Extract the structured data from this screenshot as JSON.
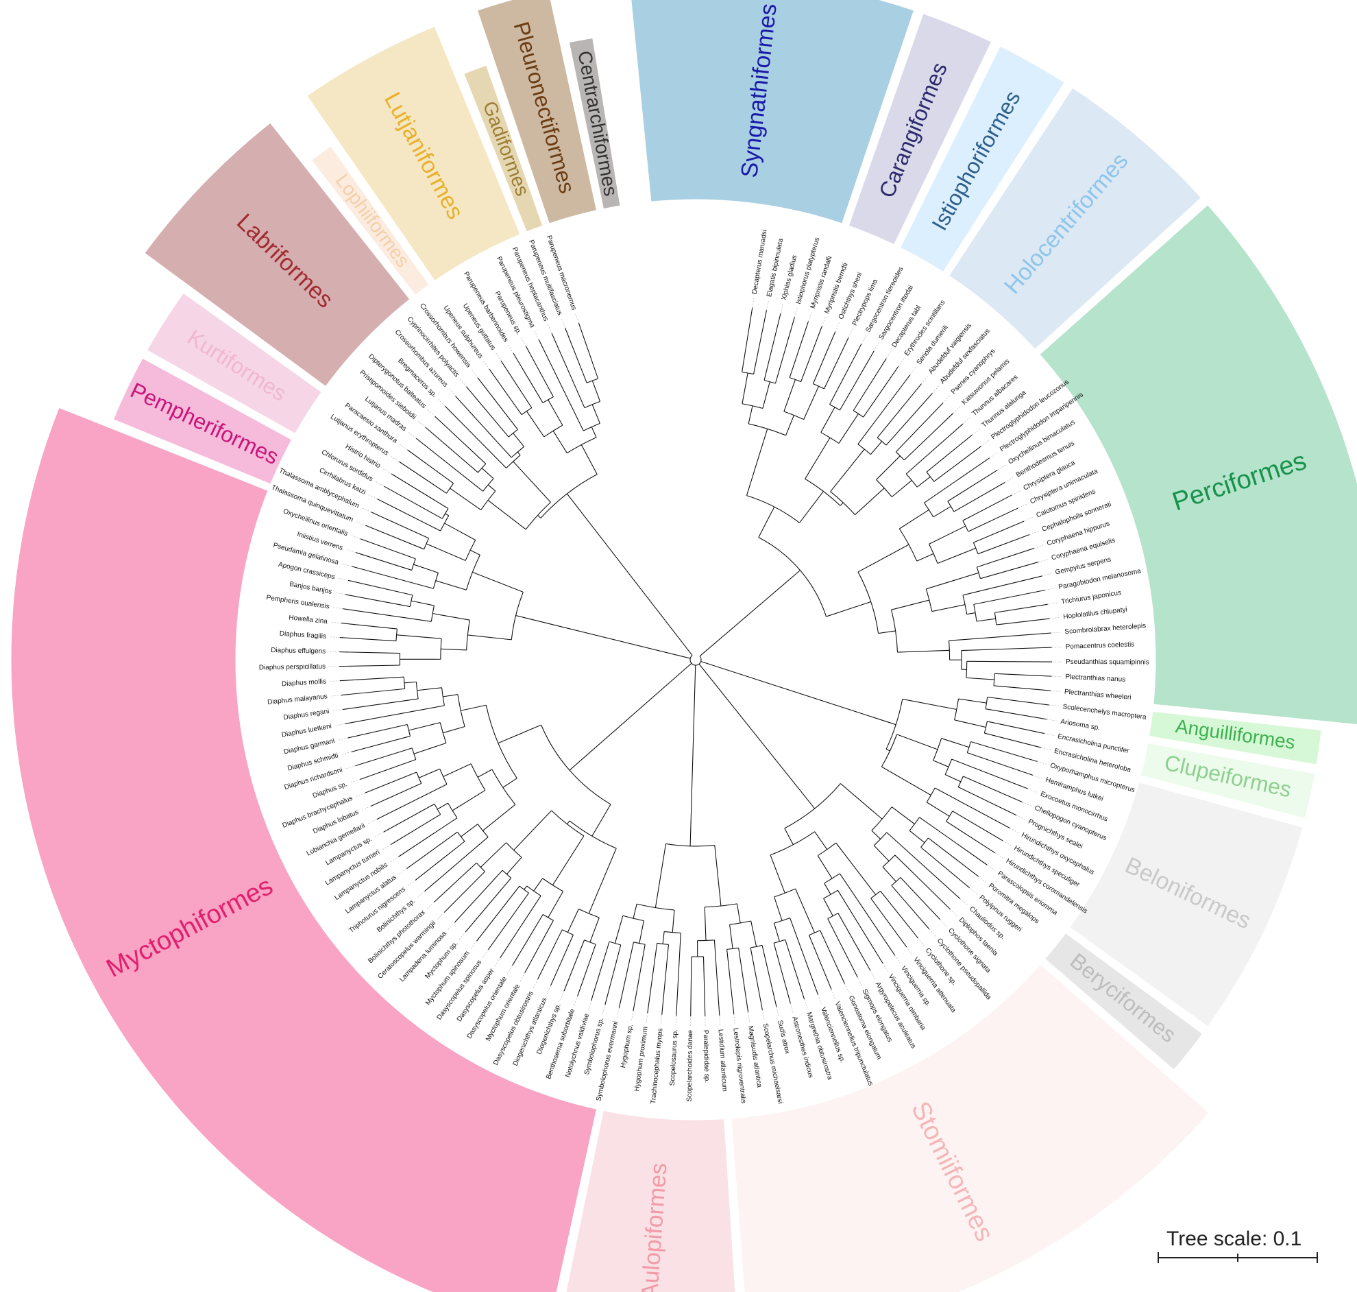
{
  "orders": [
    {
      "name": "Syngnathiformes",
      "label_color": "#1a1aa8",
      "fill": "#a9cfe3",
      "a0": -96,
      "a1": -71,
      "outer": true
    },
    {
      "name": "Carangiformes",
      "label_color": "#2b2a6b",
      "fill": "#d9d9ea",
      "a0": -71,
      "a1": -64,
      "outer": true
    },
    {
      "name": "Istiophoriformes",
      "label_color": "#2e5f8a",
      "fill": "#dcefff",
      "a0": -64,
      "a1": -57,
      "outer": true
    },
    {
      "name": "Holocentriformes",
      "label_color": "#8ec5ea",
      "fill": "#dce8f4",
      "a0": -57,
      "a1": -42,
      "outer": true
    },
    {
      "name": "Perciformes",
      "label_color": "#17924a",
      "fill": "#b5e3cb",
      "a0": -42,
      "a1": 6,
      "outer": true
    },
    {
      "name": "Anguilliformes",
      "label_color": "#3cb24e",
      "fill": "#d7f8d7",
      "a0": 6,
      "a1": 10,
      "outer": false
    },
    {
      "name": "Clupeiformes",
      "label_color": "#8fd08f",
      "fill": "#ecfbec",
      "a0": 10,
      "a1": 15,
      "outer": false
    },
    {
      "name": "Beloniformes",
      "label_color": "#c9c9c9",
      "fill": "#f2f2f2",
      "a0": 15,
      "a1": 36,
      "outer": false
    },
    {
      "name": "Beryciformes",
      "label_color": "#bdbdbd",
      "fill": "#e6e6e6",
      "a0": 36,
      "a1": 41,
      "outer": false
    },
    {
      "name": "Stomiiformes",
      "label_color": "#f4b6b6",
      "fill": "#fdf3f3",
      "a0": 41,
      "a1": 86,
      "outer": true
    },
    {
      "name": "Aulopiformes",
      "label_color": "#f29aa8",
      "fill": "#f9e1e5",
      "a0": 86,
      "a1": 102,
      "outer": true
    },
    {
      "name": "Myctophiformes",
      "label_color": "#e0206e",
      "fill": "#f9a3c5",
      "a0": 102,
      "a1": 202,
      "outer": true
    },
    {
      "name": "Pempheriformes",
      "label_color": "#c8157a",
      "fill": "#f6badb",
      "a0": 202,
      "a1": 209,
      "outer": false
    },
    {
      "name": "Kurtiformes",
      "label_color": "#f0b6d0",
      "fill": "#f6d6e6",
      "a0": 209,
      "a1": 216,
      "outer": false
    },
    {
      "name": "Labriformes",
      "label_color": "#a22b30",
      "fill": "#d5aeb0",
      "a0": 216,
      "a1": 232,
      "outer": true
    },
    {
      "name": "Lophiiformes",
      "label_color": "#f4cfa8",
      "fill": "#fcebdf",
      "a0": 232,
      "a1": 235,
      "outer": false
    },
    {
      "name": "Lutjaniformes",
      "label_color": "#e8b02c",
      "fill": "#f6e7c4",
      "a0": 235,
      "a1": 248,
      "outer": true
    },
    {
      "name": "Gadiformes",
      "label_color": "#9c7d33",
      "fill": "#e6d7b3",
      "a0": 248,
      "a1": 251,
      "outer": false
    },
    {
      "name": "Pleuronectiformes",
      "label_color": "#6b3c12",
      "fill": "#cdb9a2",
      "a0": 251,
      "a1": 258,
      "outer": true
    },
    {
      "name": "Centrarchiformes",
      "label_color": "#333333",
      "fill": "#b9b5b5",
      "a0": 258,
      "a1": 261,
      "outer": false
    }
  ],
  "taxa": [
    "Decapterus maruadsi",
    "Elagatis bipinnulata",
    "Xiphias gladius",
    "Istiophorus platypterus",
    "Myripristis randalli",
    "Myripristis berndti",
    "Ostichthys sheni",
    "Plectrypops lima",
    "Sargocentron tiereoides",
    "Sargocentron ittodai",
    "Decapterus tabl",
    "Erythrocles scintillans",
    "Seriola dumerili",
    "Abudefduf vaigiensis",
    "Abudefduf sexfasciatus",
    "Psenes cyanophrys",
    "Katsuwonus pelamis",
    "Thunnus albacares",
    "Thunnus alalunga",
    "Plectroglyphidodon leucozonus",
    "Plectroglyphidodon imparipennis",
    "Oxycheilinus bimaculatus",
    "Benthodesmus tenuis",
    "Chrysiptera glauca",
    "Chrysiptera unimaculata",
    "Calotomus spinidens",
    "Cephalopholis sonnerati",
    "Coryphaena hippurus",
    "Coryphaena equiselis",
    "Gempylus serpens",
    "Paragobiodon melanosoma",
    "Trichiurus japonicus",
    "Hoplolatilus chlupatyi",
    "Scombrolabrax heterolepis",
    "Pomacentrus coelestis",
    "Pseudanthias squamipinnis",
    "Plectranthias nanus",
    "Plectranthias wheeleri",
    "Scolecenchelys macroptera",
    "Ariosoma sp.",
    "Encrasicholina punctifer",
    "Encrasicholina heteroloba",
    "Oxyporhamphus micropterus",
    "Hemiramphus lutkei",
    "Exocoetus monocirrhus",
    "Cheilopogon cyanopterus",
    "Prognichthys sealei",
    "Hirundichthys oxycephalus",
    "Hirundichthys speculiger",
    "Hirundichthys coromandelensis",
    "Parascolopsis eriomma",
    "Poromitra megalops",
    "Polyipnus ruggeri",
    "Chauliodus sp.",
    "Diplophos taenia",
    "Cyclothone signata",
    "Cyclothone pseudopallida",
    "Cyclothone sp.",
    "Vinciguerria attenuata",
    "Vinciguerria sp.",
    "Vinciguerria nimbaria",
    "Argyropelecus aculeatus",
    "Sigmops elongatus",
    "Gonostoma elongatum",
    "Valenciennellus tripunctulatus",
    "Valenciennellus sp.",
    "Margrethia obtusirostra",
    "Astronesthes indicus",
    "Sudis atrox",
    "Scopelarchus michaelsarsi",
    "Magnisudis atlantica",
    "Lestrolepis nigroventralis",
    "Lestidium atlanticum",
    "Paralepididae sp.",
    "Scopelarchoides danae",
    "Scopelosaurus sp.",
    "Trachinocephalus myops",
    "Hygophum proximum",
    "Hygophum sp.",
    "Symbolophorus evermanni",
    "Symbolophorus sp.",
    "Notolychnus valdiviae",
    "Benthosema suborbitale",
    "Diogenichthys sp.",
    "Diogenichthys atlanticus",
    "Dasyscopelus obtusirostris",
    "Myctophum orientale",
    "Dasyscopelus orientale",
    "Dasyscopelus asper",
    "Dasyscopelus spinosus",
    "Myctophum spinosum",
    "Myctophum sp.",
    "Lampadena luminosa",
    "Ceratoscopelus warmingii",
    "Bolinichthys photothorax",
    "Bolinichthys sp.",
    "Triphoturus nigrescens",
    "Lampanyctus alatus",
    "Lampanyctus nobilis",
    "Lampanyctus turneri",
    "Lampanyctus sp.",
    "Lobianchia gemellarii",
    "Diaphus lobatus",
    "Diaphus brachycephalus",
    "Diaphus sp.",
    "Diaphus richardsoni",
    "Diaphus schmidti",
    "Diaphus garmani",
    "Diaphus luetkeni",
    "Diaphus regani",
    "Diaphus malayanus",
    "Diaphus mollis",
    "Diaphus perspicillatus",
    "Diaphus effulgens",
    "Diaphus fragilis",
    "Howella zina",
    "Pempheris oualensis",
    "Banjos banjos",
    "Apogon crassiceps",
    "Pseudamia gelatinosa",
    "Iniistius verrens",
    "Oxycheilinus orientalis",
    "Thalassoma quinquevittatum",
    "Thalassoma amblycephalum",
    "Cirrhilabrus katzi",
    "Chlorurus sordidus",
    "Histrio histrio",
    "Lutjanus erythropterus",
    "Paracaesio xanthura",
    "Lutjanus madras",
    "Pristipomoides sieboldii",
    "Dipterygonotus balteatus",
    "Bregmaceros sp.",
    "Crossorhombus azureus",
    "Cyprinocirrhites polyactis",
    "Crossorhombus howensis",
    "Upeneus sulphureus",
    "Upeneus guttatus",
    "Parupeneus barberinoides",
    "Parupeneus sp.",
    "Parupeneus pleurostigma",
    "Parupeneus heptacanthus",
    "Parupeneus multifasciatus",
    "Parupeneus macronemus"
  ],
  "scale": {
    "label": "Tree scale: 0.1"
  }
}
